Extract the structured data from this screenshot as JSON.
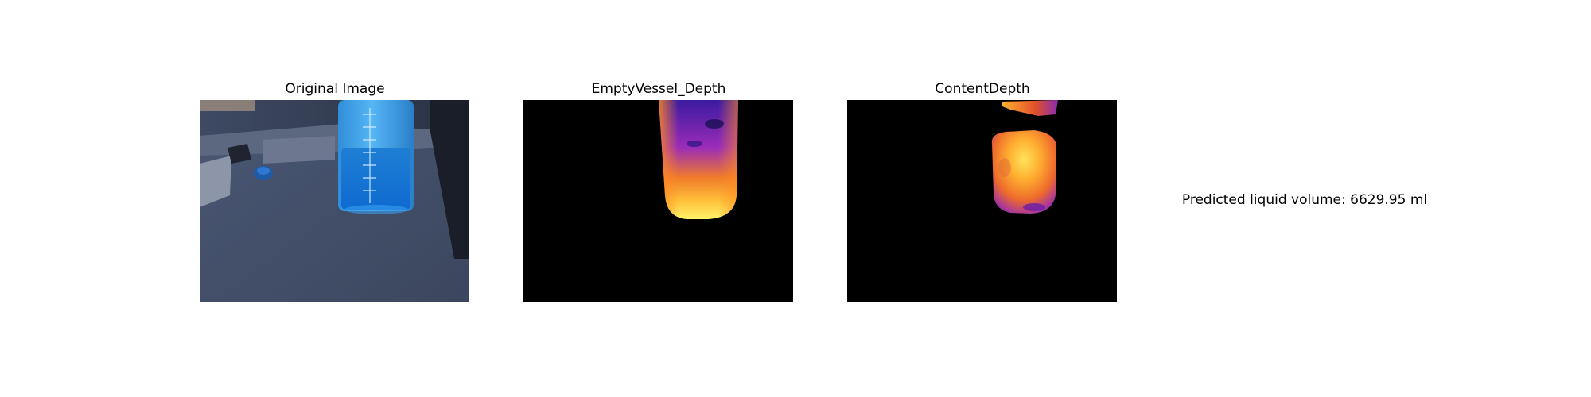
{
  "panels": [
    {
      "title": "Original Image"
    },
    {
      "title": "EmptyVessel_Depth"
    },
    {
      "title": "ContentDepth"
    }
  ],
  "result": {
    "text": "Predicted liquid volume: 6629.95 ml"
  }
}
